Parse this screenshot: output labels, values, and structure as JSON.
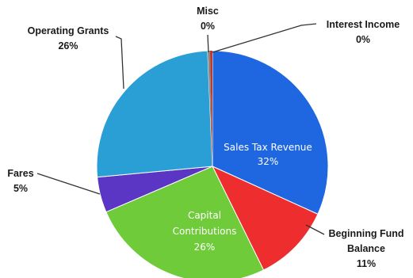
{
  "chart_data": {
    "type": "pie",
    "title": "",
    "slices": [
      {
        "label_lines": [
          "Sales Tax Revenue"
        ],
        "value": 32,
        "value_label": "32%",
        "color": "#1f67e0",
        "label_placement": "inside"
      },
      {
        "label_lines": [
          "Beginning Fund",
          "Balance"
        ],
        "value": 11,
        "value_label": "11%",
        "color": "#ee2e2e",
        "label_placement": "outside"
      },
      {
        "label_lines": [
          "Capital",
          "Contributions"
        ],
        "value": 26,
        "value_label": "26%",
        "color": "#6fcb3a",
        "label_placement": "inside"
      },
      {
        "label_lines": [
          "Fares"
        ],
        "value": 5,
        "value_label": "5%",
        "color": "#5b36c4",
        "label_placement": "outside"
      },
      {
        "label_lines": [
          "Operating Grants"
        ],
        "value": 26,
        "value_label": "26%",
        "color": "#2a9fd6",
        "label_placement": "outside"
      },
      {
        "label_lines": [
          "Misc"
        ],
        "value": 0,
        "value_label": "0%",
        "color": "#8a8a8a",
        "label_placement": "outside"
      },
      {
        "label_lines": [
          "Interest Income"
        ],
        "value": 0,
        "value_label": "0%",
        "color": "#c0392b",
        "label_placement": "outside"
      }
    ]
  }
}
